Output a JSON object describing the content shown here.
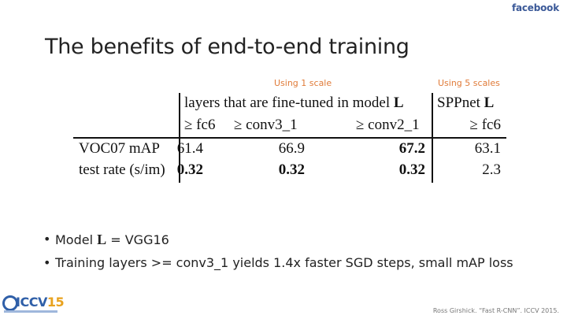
{
  "brand": "facebook",
  "title": "The benefits of end-to-end training",
  "notes": {
    "one_scale": "Using 1 scale",
    "five_scales": "Using 5 scales"
  },
  "table": {
    "group_header": "layers that are fine-tuned in model",
    "group_header_symbol": "L",
    "sppnet_header": "SPPnet",
    "sppnet_header_symbol": "L",
    "subheaders": [
      "≥ fc6",
      "≥ conv3_1",
      "≥ conv2_1",
      "≥ fc6"
    ],
    "rows": [
      {
        "label": "VOC07 mAP",
        "cells": [
          "61.4",
          "66.9",
          "67.2",
          "63.1"
        ]
      },
      {
        "label": "test rate (s/im)",
        "cells": [
          "0.32",
          "0.32",
          "0.32",
          "2.3"
        ]
      }
    ]
  },
  "bullets": [
    {
      "prefix": "Model ",
      "symbol": "L",
      "suffix": " = VGG16"
    },
    {
      "text": "Training layers >= conv3_1 yields 1.4x faster SGD steps, small mAP loss"
    }
  ],
  "logo": {
    "text": "ICCV",
    "year": "15"
  },
  "citation": "Ross Girshick. “Fast R-CNN”. ICCV 2015."
}
